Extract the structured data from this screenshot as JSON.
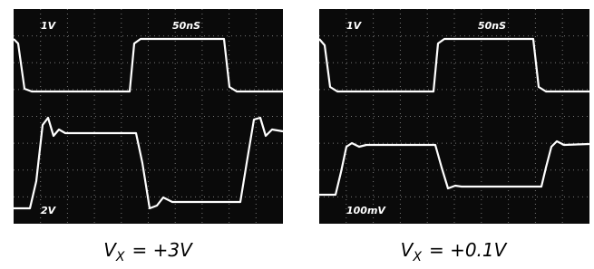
{
  "panels": [
    {
      "volts_top": "1V",
      "time": "50nS",
      "volts_bottom": "2V",
      "caption": {
        "main": "V",
        "sub": "X",
        "rest": "= +3V"
      }
    },
    {
      "volts_top": "1V",
      "time": "50nS",
      "volts_bottom": "100mV",
      "caption": {
        "main": "V",
        "sub": "X",
        "rest": "= +0.1V"
      }
    }
  ]
}
